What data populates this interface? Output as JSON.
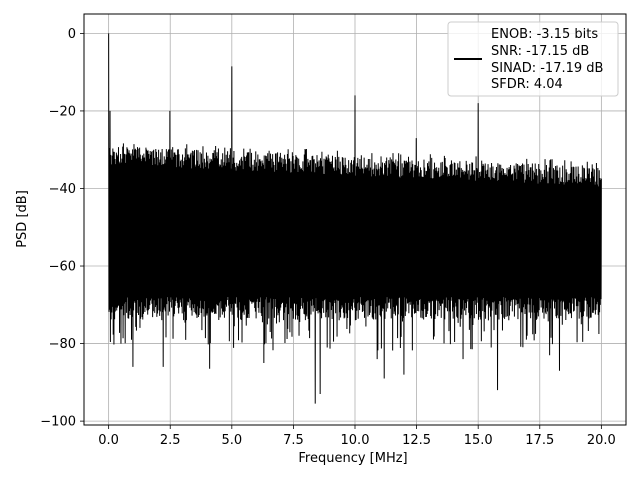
{
  "chart_data": {
    "type": "line",
    "title": "",
    "xlabel": "Frequency [MHz]",
    "ylabel": "PSD [dB]",
    "xlim": [
      -1.0,
      21.0
    ],
    "ylim": [
      -101.0,
      5.0
    ],
    "xticks": [
      0.0,
      2.5,
      5.0,
      7.5,
      10.0,
      12.5,
      15.0,
      17.5,
      20.0
    ],
    "xtick_labels": [
      "0.0",
      "2.5",
      "5.0",
      "7.5",
      "10.0",
      "12.5",
      "15.0",
      "17.5",
      "20.0"
    ],
    "yticks": [
      0,
      -20,
      -40,
      -60,
      -80,
      -100
    ],
    "ytick_labels": [
      "0",
      "−20",
      "−40",
      "−60",
      "−80",
      "−100"
    ],
    "grid": true,
    "series_color": "#000000",
    "legend": {
      "placement": "top-right",
      "entries": [
        "ENOB: -3.15 bits",
        "SNR: -17.15 dB",
        "SINAD: -17.19 dB",
        "SFDR: 4.04"
      ]
    },
    "spectrum": {
      "x_range": [
        0.0,
        20.0
      ],
      "noise_ceiling_start_end": [
        -27.5,
        -33.0
      ],
      "noise_floor_typical": -72.0,
      "peaks": [
        {
          "x": 0.0,
          "y": 0.0
        },
        {
          "x": 0.05,
          "y": -20.0
        },
        {
          "x": 2.5,
          "y": -20.0
        },
        {
          "x": 5.0,
          "y": -8.5
        },
        {
          "x": 10.0,
          "y": -16.0
        },
        {
          "x": 12.5,
          "y": -27.0
        },
        {
          "x": 15.0,
          "y": -18.0
        }
      ],
      "dips": [
        {
          "x": 0.5,
          "y": -80.0
        },
        {
          "x": 1.0,
          "y": -86.0
        },
        {
          "x": 2.2,
          "y": -86.0
        },
        {
          "x": 4.1,
          "y": -86.5
        },
        {
          "x": 6.3,
          "y": -85.0
        },
        {
          "x": 8.4,
          "y": -95.5
        },
        {
          "x": 8.6,
          "y": -93.0
        },
        {
          "x": 10.9,
          "y": -84.0
        },
        {
          "x": 11.2,
          "y": -89.0
        },
        {
          "x": 12.0,
          "y": -88.0
        },
        {
          "x": 14.4,
          "y": -84.0
        },
        {
          "x": 15.8,
          "y": -92.0
        },
        {
          "x": 17.9,
          "y": -83.0
        },
        {
          "x": 18.3,
          "y": -87.0
        }
      ]
    }
  }
}
